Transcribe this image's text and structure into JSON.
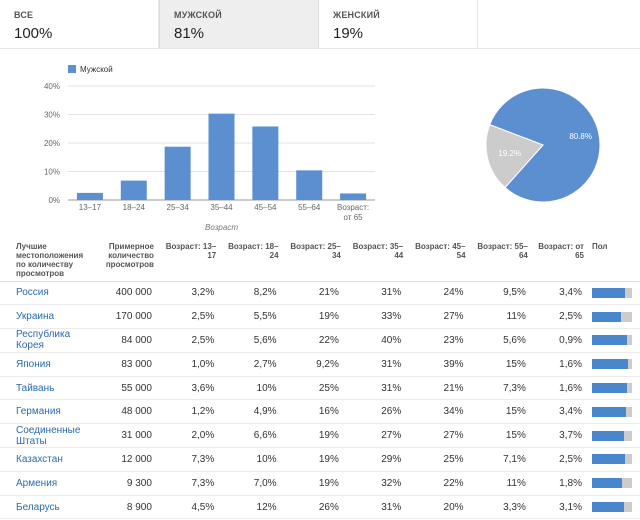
{
  "tabs": [
    {
      "label": "ВСЕ",
      "value": "100%"
    },
    {
      "label": "МУЖСКОЙ",
      "value": "81%"
    },
    {
      "label": "ЖЕНСКИЙ",
      "value": "19%"
    }
  ],
  "active_tab": 1,
  "colors": {
    "male": "#5b8fd0",
    "female": "#cccccc",
    "link": "#2a6ab0"
  },
  "chart_data": [
    {
      "type": "bar",
      "legend": [
        "Мужской"
      ],
      "categories": [
        "13–17",
        "18–24",
        "25–34",
        "35–44",
        "45–54",
        "55–64",
        "Возраст: от 65"
      ],
      "values": [
        2.5,
        6.8,
        18.7,
        30.3,
        25.8,
        10.4,
        2.3
      ],
      "xlabel": "Возраст",
      "ylabel": "",
      "yticks": [
        "0%",
        "10%",
        "20%",
        "30%",
        "40%"
      ],
      "ylim": [
        0,
        40
      ],
      "grid": true
    },
    {
      "type": "pie",
      "slices": [
        {
          "label": "80.8%",
          "value": 80.8
        },
        {
          "label": "19.2%",
          "value": 19.2
        }
      ]
    }
  ],
  "table": {
    "headers": [
      "Лучшие местоположения по количеству просмотров",
      "Примерное количество просмотров",
      "Возраст: 13–17",
      "Возраст: 18–24",
      "Возраст: 25–34",
      "Возраст: 35–44",
      "Возраст: 45–54",
      "Возраст: 55–64",
      "Возраст: от 65",
      "Пол"
    ],
    "rows": [
      {
        "country": "Россия",
        "views": "400 000",
        "ages": [
          "3,2%",
          "8,2%",
          "21%",
          "31%",
          "24%",
          "9,5%",
          "3,4%"
        ],
        "male_share": 0.82
      },
      {
        "country": "Украина",
        "views": "170 000",
        "ages": [
          "2,5%",
          "5,5%",
          "19%",
          "33%",
          "27%",
          "11%",
          "2,5%"
        ],
        "male_share": 0.72
      },
      {
        "country": "Республика Корея",
        "views": "84 000",
        "ages": [
          "2,5%",
          "5,6%",
          "22%",
          "40%",
          "23%",
          "5,6%",
          "0,9%"
        ],
        "male_share": 0.88
      },
      {
        "country": "Япония",
        "views": "83 000",
        "ages": [
          "1,0%",
          "2,7%",
          "9,2%",
          "31%",
          "39%",
          "15%",
          "1,6%"
        ],
        "male_share": 0.9
      },
      {
        "country": "Тайвань",
        "views": "55 000",
        "ages": [
          "3,6%",
          "10%",
          "25%",
          "31%",
          "21%",
          "7,3%",
          "1,6%"
        ],
        "male_share": 0.88
      },
      {
        "country": "Германия",
        "views": "48 000",
        "ages": [
          "1,2%",
          "4,9%",
          "16%",
          "26%",
          "34%",
          "15%",
          "3,4%"
        ],
        "male_share": 0.85
      },
      {
        "country": "Соединенные Штаты",
        "views": "31 000",
        "ages": [
          "2,0%",
          "6,6%",
          "19%",
          "27%",
          "27%",
          "15%",
          "3,7%"
        ],
        "male_share": 0.8
      },
      {
        "country": "Казахстан",
        "views": "12 000",
        "ages": [
          "7,3%",
          "10%",
          "19%",
          "29%",
          "25%",
          "7,1%",
          "2,5%"
        ],
        "male_share": 0.82
      },
      {
        "country": "Армения",
        "views": "9 300",
        "ages": [
          "7,3%",
          "7,0%",
          "19%",
          "32%",
          "22%",
          "11%",
          "1,8%"
        ],
        "male_share": 0.75
      },
      {
        "country": "Беларусь",
        "views": "8 900",
        "ages": [
          "4,5%",
          "12%",
          "26%",
          "31%",
          "20%",
          "3,3%",
          "3,1%"
        ],
        "male_share": 0.8
      }
    ]
  }
}
